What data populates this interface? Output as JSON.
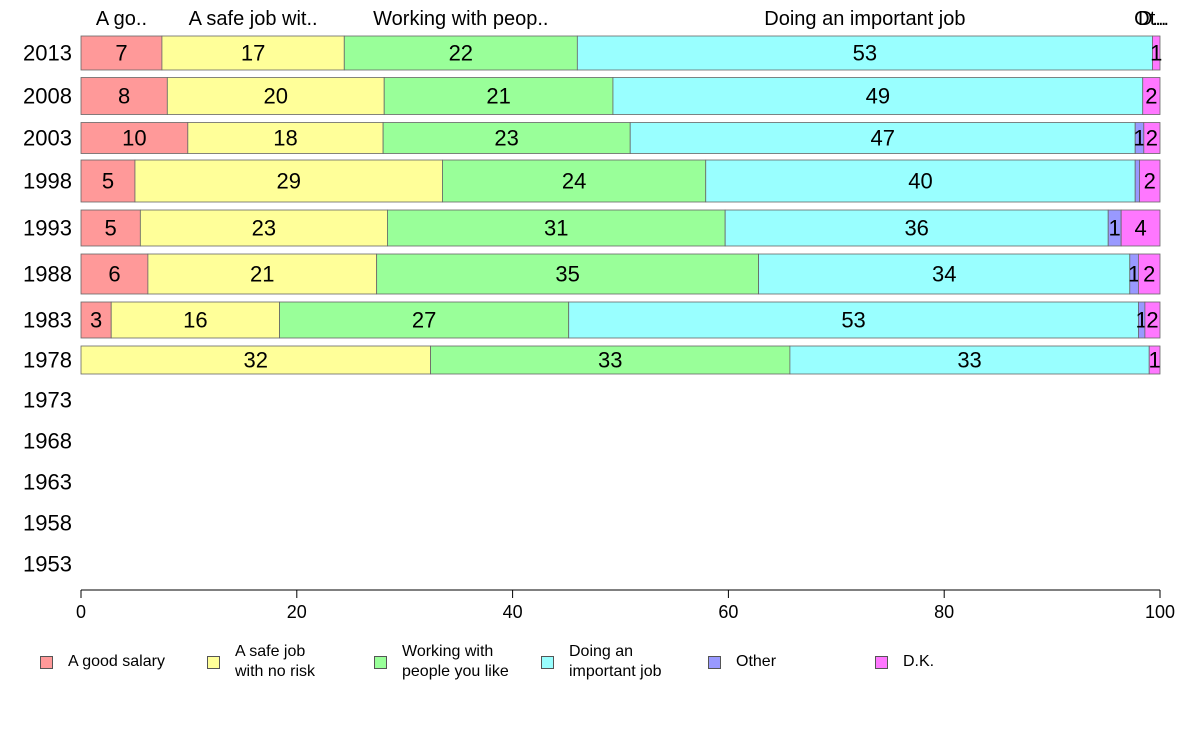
{
  "chart_data": {
    "type": "bar",
    "orientation": "horizontal",
    "stacked": true,
    "categories": [
      "2013",
      "2008",
      "2003",
      "1998",
      "1993",
      "1988",
      "1983",
      "1978",
      "1973",
      "1968",
      "1963",
      "1958",
      "1953"
    ],
    "series": [
      {
        "name": "A good salary",
        "color": "#ff9999",
        "values": [
          7,
          8,
          10,
          5,
          5,
          6,
          3,
          null,
          null,
          null,
          null,
          null,
          null
        ]
      },
      {
        "name": "A safe job with no risk",
        "color": "#ffff99",
        "values": [
          17,
          20,
          18,
          29,
          23,
          21,
          16,
          32,
          null,
          null,
          null,
          null,
          null
        ]
      },
      {
        "name": "Working with people you like",
        "color": "#99ff99",
        "values": [
          22,
          21,
          23,
          24,
          31,
          35,
          27,
          33,
          null,
          null,
          null,
          null,
          null
        ]
      },
      {
        "name": "Doing an important job",
        "color": "#99ffff",
        "values": [
          53,
          49,
          47,
          40,
          36,
          34,
          53,
          33,
          null,
          null,
          null,
          null,
          null
        ]
      },
      {
        "name": "Other",
        "color": "#9999ff",
        "values": [
          null,
          null,
          1,
          null,
          1,
          1,
          1,
          null,
          null,
          null,
          null,
          null,
          null
        ]
      },
      {
        "name": "D.K.",
        "color": "#ff77ff",
        "values": [
          1,
          2,
          2,
          2,
          4,
          2,
          2,
          1,
          null,
          null,
          null,
          null,
          null
        ]
      }
    ],
    "segment_widths": [
      [
        7.5,
        16.9,
        21.6,
        53.3,
        0.0,
        0.7
      ],
      [
        8.0,
        20.1,
        21.2,
        49.1,
        0.0,
        1.6
      ],
      [
        9.9,
        18.1,
        22.9,
        46.8,
        0.8,
        1.5
      ],
      [
        5.0,
        28.5,
        24.4,
        39.8,
        0.4,
        1.9
      ],
      [
        5.5,
        22.9,
        31.3,
        35.5,
        1.2,
        3.6
      ],
      [
        6.2,
        21.2,
        35.4,
        34.4,
        0.8,
        2.0
      ],
      [
        2.8,
        15.6,
        26.8,
        52.8,
        0.6,
        1.4
      ],
      [
        0.0,
        32.4,
        33.3,
        33.3,
        0.0,
        1.0
      ],
      [
        0,
        0,
        0,
        0,
        0,
        0
      ],
      [
        0,
        0,
        0,
        0,
        0,
        0
      ],
      [
        0,
        0,
        0,
        0,
        0,
        0
      ],
      [
        0,
        0,
        0,
        0,
        0,
        0
      ],
      [
        0,
        0,
        0,
        0,
        0,
        0
      ]
    ],
    "top_labels": [
      "A go..",
      "A safe job wit..",
      "Working with peop..",
      "Doing an important job",
      "Ot..",
      "D..."
    ],
    "xlim": [
      0,
      100
    ],
    "xticks": [
      0,
      20,
      40,
      60,
      80,
      100
    ],
    "title": "",
    "xlabel": "",
    "ylabel": "",
    "grid": false,
    "legend_position": "bottom",
    "legend": [
      {
        "label": "A good salary",
        "color": "#ff9999"
      },
      {
        "label": "A safe job\nwith no risk",
        "color": "#ffff99"
      },
      {
        "label": "Working with\npeople you like",
        "color": "#99ff99"
      },
      {
        "label": "Doing an\nimportant job",
        "color": "#99ffff"
      },
      {
        "label": "Other",
        "color": "#9999ff"
      },
      {
        "label": "D.K.",
        "color": "#ff77ff"
      }
    ]
  }
}
